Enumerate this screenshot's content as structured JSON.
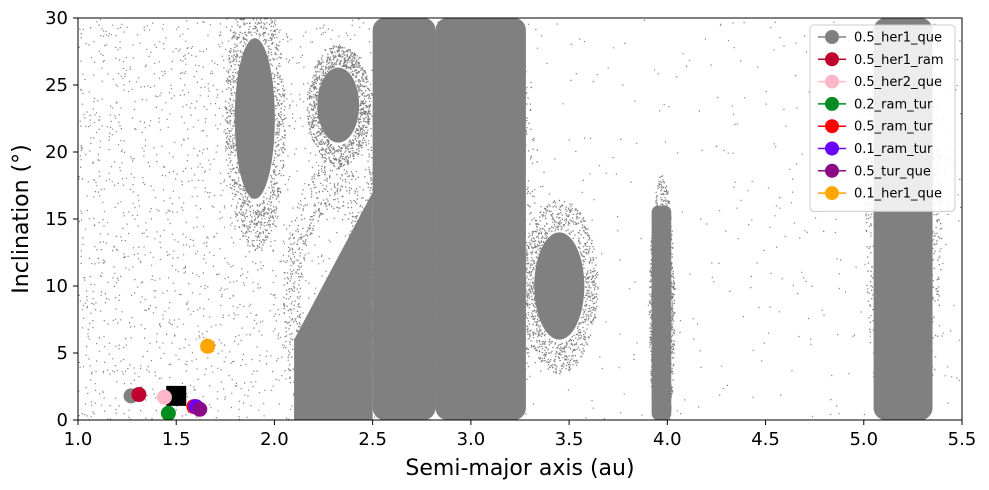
{
  "chart_data": {
    "type": "scatter",
    "xlabel": "Semi-major axis (au)",
    "ylabel": "Inclination (°)",
    "xlim": [
      1.0,
      5.5
    ],
    "ylim": [
      0,
      30
    ],
    "x_ticks": [
      "1.0",
      "1.5",
      "2.0",
      "2.5",
      "3.0",
      "3.5",
      "4.0",
      "4.5",
      "5.0",
      "5.5"
    ],
    "y_ticks": [
      "0",
      "5",
      "10",
      "15",
      "20",
      "25",
      "30"
    ],
    "grid": false,
    "legend_position": "top-right",
    "background_population_color": "#808080",
    "background_population": [
      {
        "region": "hungaria",
        "a": [
          1.78,
          2.02
        ],
        "i": [
          15,
          30
        ]
      },
      {
        "region": "inner-main-belt",
        "a": [
          2.1,
          2.5
        ],
        "i": [
          0,
          17
        ]
      },
      {
        "region": "phocaea",
        "a": [
          2.2,
          2.45
        ],
        "i": [
          20,
          27
        ]
      },
      {
        "region": "middle-main-belt",
        "a": [
          2.5,
          2.82
        ],
        "i": [
          0,
          30
        ]
      },
      {
        "region": "outer-main-belt",
        "a": [
          2.82,
          3.28
        ],
        "i": [
          0,
          30
        ]
      },
      {
        "region": "cybele",
        "a": [
          3.3,
          3.6
        ],
        "i": [
          5,
          15
        ]
      },
      {
        "region": "hilda",
        "a": [
          3.92,
          4.02
        ],
        "i": [
          0,
          16
        ]
      },
      {
        "region": "jupiter-trojans",
        "a": [
          5.05,
          5.35
        ],
        "i": [
          0,
          30
        ]
      }
    ],
    "target_marker": {
      "shape": "square",
      "color": "#000000",
      "x": 1.5,
      "y": 1.8
    },
    "series": [
      {
        "name": "0.5_her1_que",
        "color": "#808080",
        "x": [
          1.27
        ],
        "y": [
          1.8
        ]
      },
      {
        "name": "0.5_her1_ram",
        "color": "#c0002f",
        "x": [
          1.31
        ],
        "y": [
          1.9
        ]
      },
      {
        "name": "0.5_her2_que",
        "color": "#ffb6c8",
        "x": [
          1.44
        ],
        "y": [
          1.7
        ]
      },
      {
        "name": "0.2_ram_tur",
        "color": "#008c1e",
        "x": [
          1.46
        ],
        "y": [
          0.5
        ]
      },
      {
        "name": "0.5_ram_tur",
        "color": "#ff0000",
        "x": [
          1.59
        ],
        "y": [
          1.0
        ]
      },
      {
        "name": "0.1_ram_tur",
        "color": "#6a00ff",
        "x": [
          1.6
        ],
        "y": [
          1.0
        ]
      },
      {
        "name": "0.5_tur_que",
        "color": "#8b0a88",
        "x": [
          1.62
        ],
        "y": [
          0.8
        ]
      },
      {
        "name": "0.1_her1_que",
        "color": "#ffa500",
        "x": [
          1.66
        ],
        "y": [
          5.5
        ]
      }
    ]
  }
}
